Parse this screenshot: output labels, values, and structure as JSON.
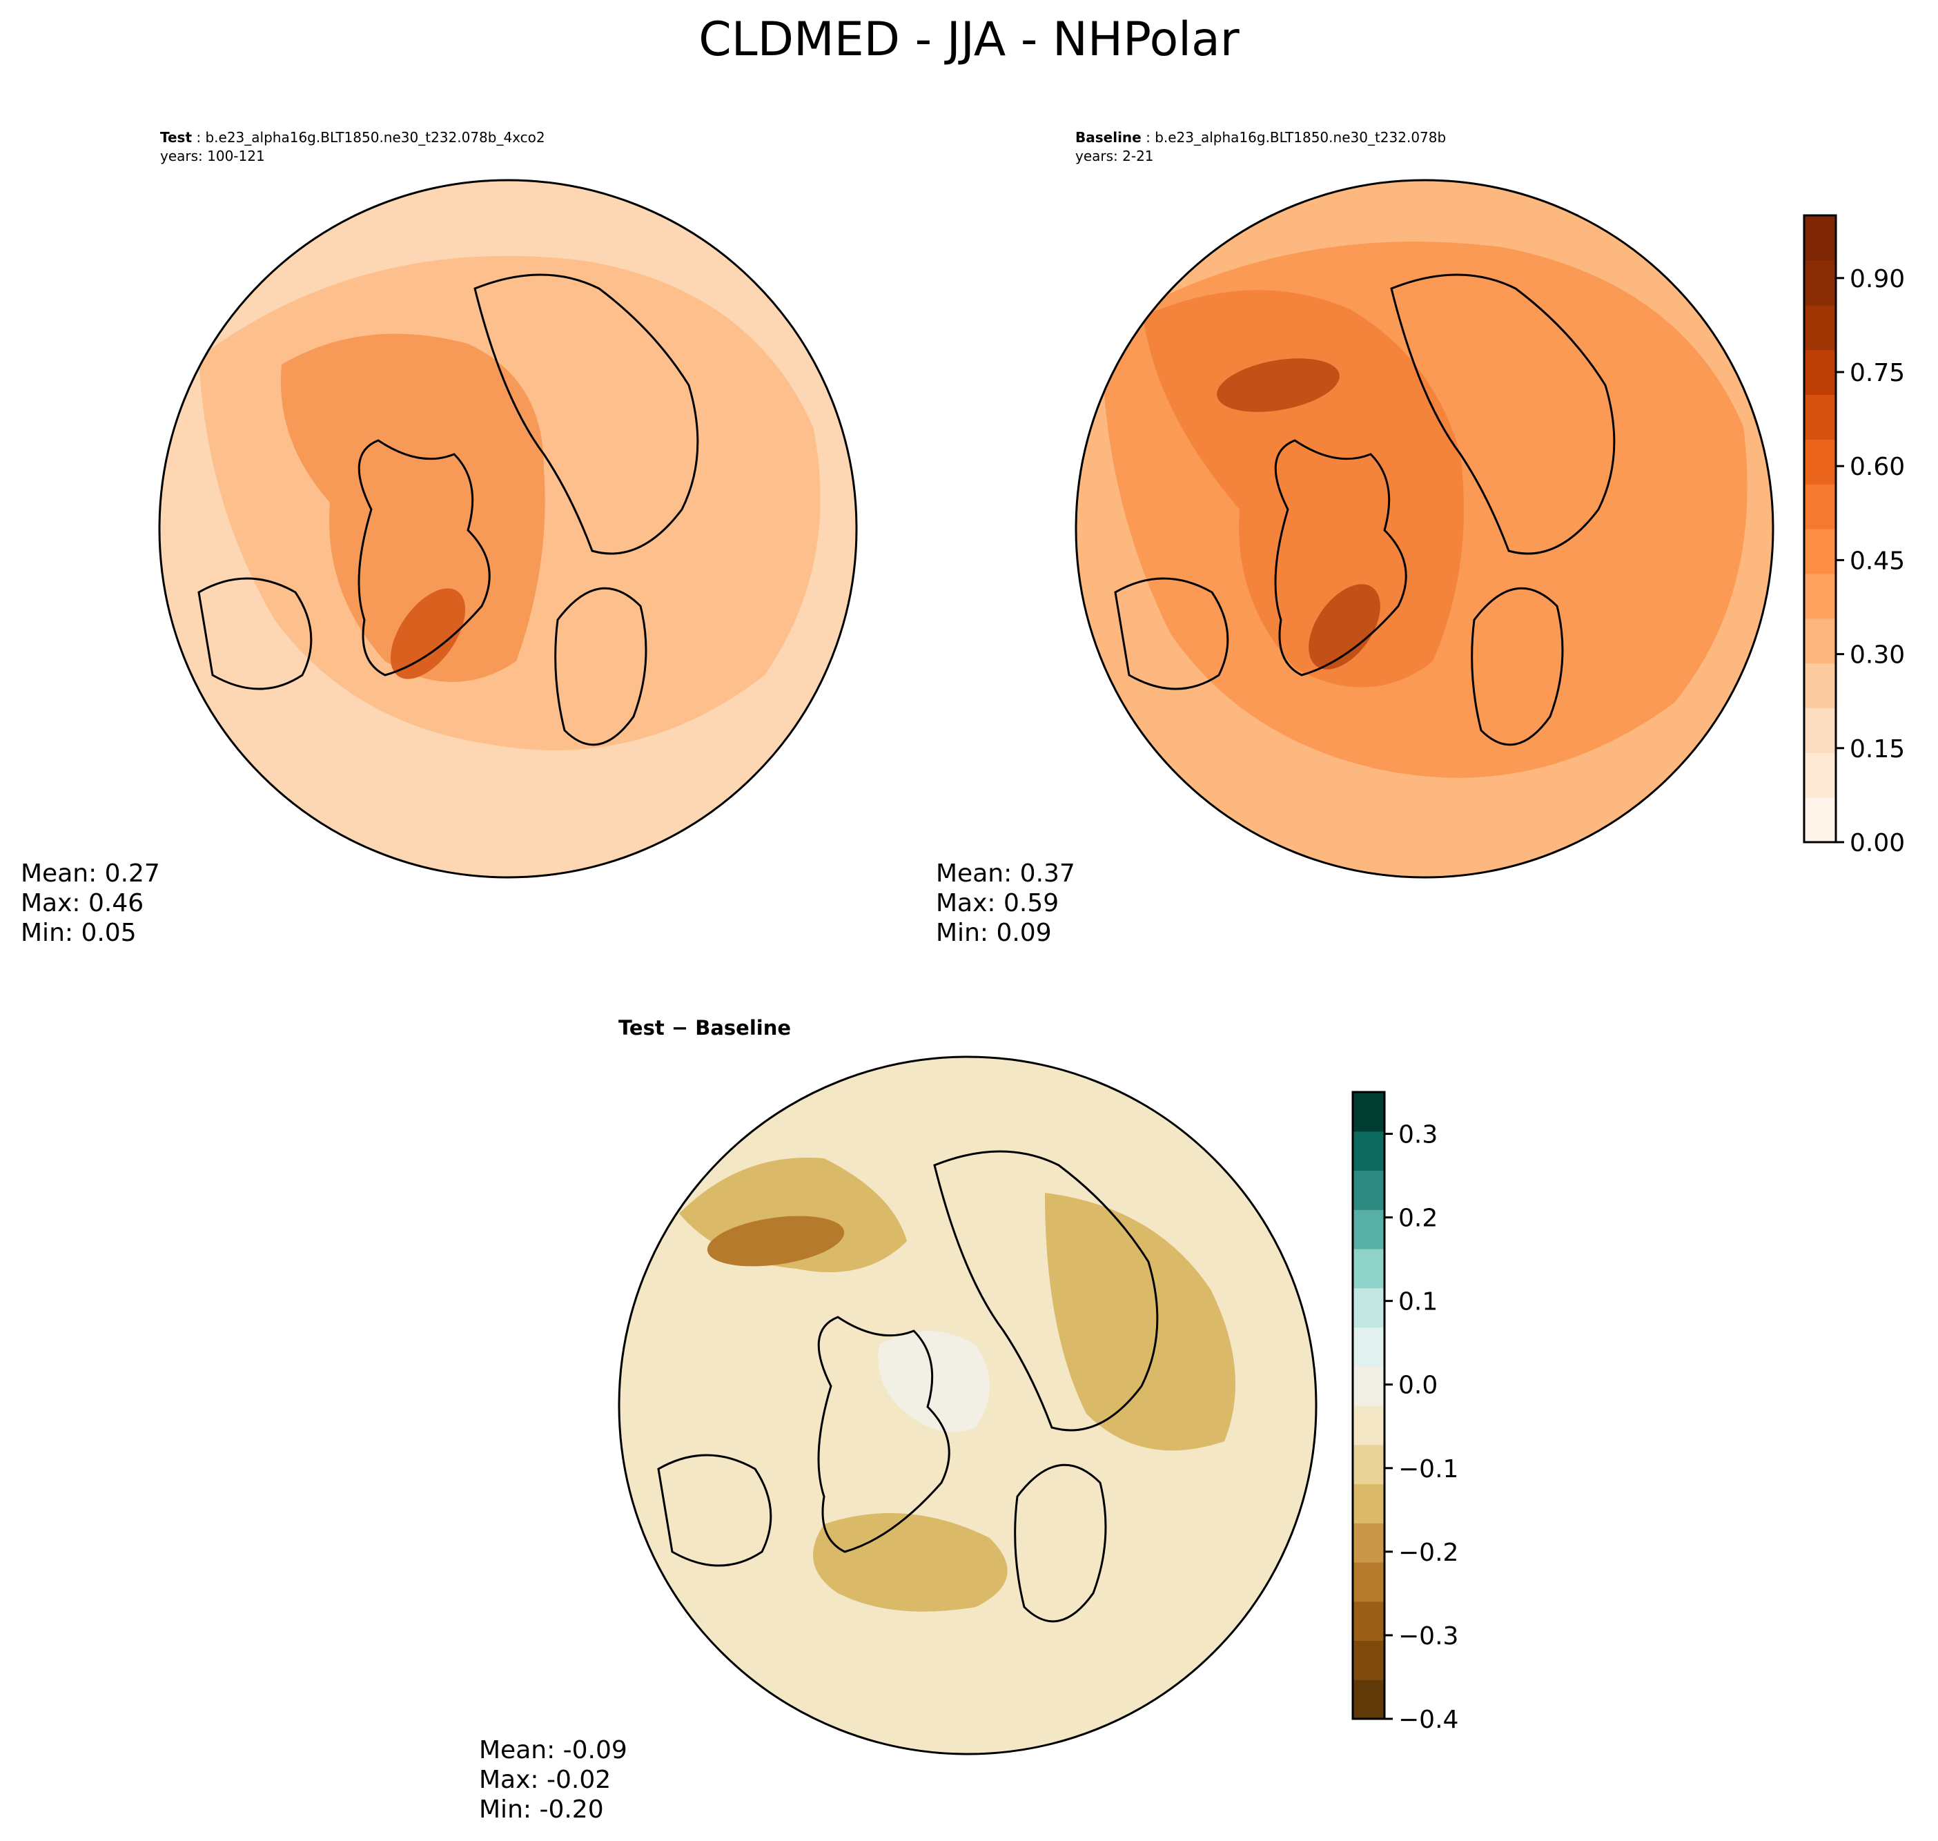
{
  "figure": {
    "title": "CLDMED - JJA - NHPolar"
  },
  "panels": [
    {
      "id": "test",
      "label_bold": "Test",
      "case": "b.e23_alpha16g.BLT1850.ne30_t232.078b_4xco2",
      "years": "years: 100-121",
      "stats": {
        "mean": "Mean:  0.27",
        "max": "Max:  0.46",
        "min": "Min:  0.05"
      }
    },
    {
      "id": "baseline",
      "label_bold": "Baseline",
      "case": "b.e23_alpha16g.BLT1850.ne30_t232.078b",
      "years": "years: 2-21",
      "stats": {
        "mean": "Mean:  0.37",
        "max": "Max:  0.59",
        "min": "Min:  0.09"
      }
    },
    {
      "id": "diff",
      "label_bold": "Test − Baseline",
      "stats": {
        "mean": "Mean: -0.09",
        "max": "Max: -0.02",
        "min": "Min: -0.20"
      }
    }
  ],
  "colorbars": {
    "abs": {
      "min": 0.0,
      "max": 1.0,
      "ticks": [
        0.0,
        0.15,
        0.3,
        0.45,
        0.6,
        0.75,
        0.9
      ],
      "tick_labels": [
        "0.00",
        "0.15",
        "0.30",
        "0.45",
        "0.60",
        "0.75",
        "0.90"
      ],
      "colors": [
        "#fff5eb",
        "#fee9d5",
        "#fdddbf",
        "#fdcba0",
        "#fdb77e",
        "#fda25f",
        "#fd8e46",
        "#f57a2f",
        "#ea641b",
        "#d6500e",
        "#bd3f05",
        "#a13403",
        "#8a2c04",
        "#7f2704"
      ]
    },
    "diff": {
      "min": -0.4,
      "max": 0.35,
      "ticks": [
        -0.4,
        -0.3,
        -0.2,
        -0.1,
        0.0,
        0.1,
        0.2,
        0.3
      ],
      "tick_labels": [
        "−0.4",
        "−0.3",
        "−0.2",
        "−0.1",
        "0.0",
        "0.1",
        "0.2",
        "0.3"
      ],
      "colors": [
        "#613a0a",
        "#7e4a0d",
        "#9b5e17",
        "#b57a2c",
        "#c99747",
        "#dab969",
        "#e9d295",
        "#f3e7c6",
        "#f2efe4",
        "#e1f1ee",
        "#c3e8e2",
        "#8fd3c8",
        "#58b0a5",
        "#2c8a81",
        "#0d6a5f",
        "#003c30"
      ]
    }
  },
  "map_fills": {
    "test_base": "#fdd7b4",
    "test_mid": "#fdbf8c",
    "test_high": "#f79a57",
    "test_peak": "#d9601f",
    "base_base": "#fdb87f",
    "base_mid": "#fb9a55",
    "base_high": "#f4833b",
    "base_peak": "#c35017",
    "diff_base": "#f3e7c6",
    "diff_mid": "#dab969",
    "diff_high": "#b57a2c",
    "diff_light": "#f2efe4"
  }
}
